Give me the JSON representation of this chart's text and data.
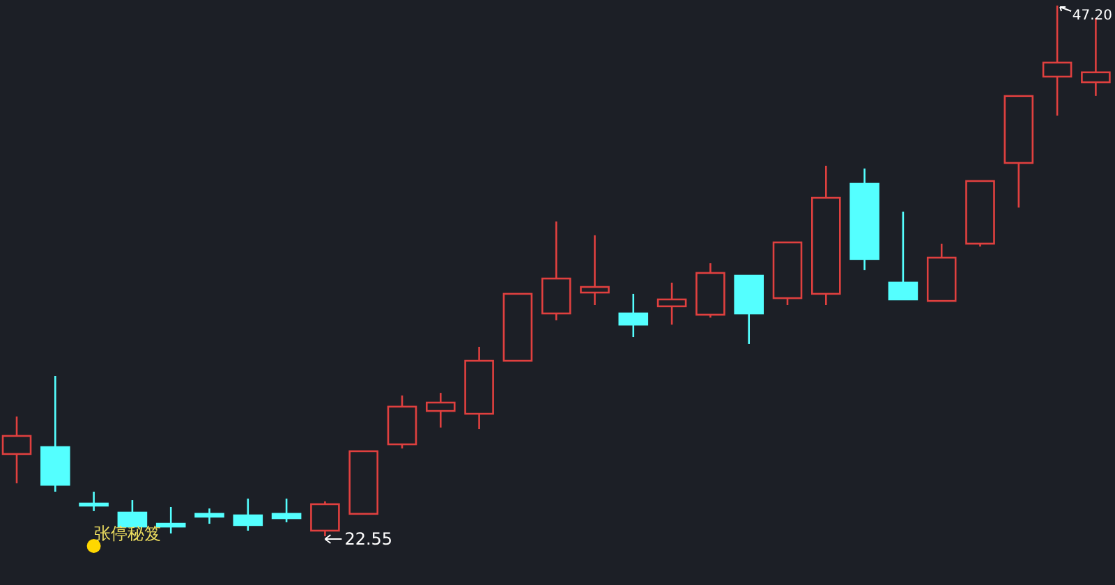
{
  "chart_data": {
    "type": "candlestick",
    "categories": [
      null,
      null,
      null,
      null,
      null,
      null,
      null,
      null,
      null,
      null,
      null,
      null,
      null,
      null,
      null,
      null,
      null,
      null,
      null,
      null,
      null,
      null,
      null,
      null,
      null,
      null,
      null,
      null,
      null
    ],
    "ohlc": [
      [
        26.37,
        28.11,
        25.01,
        27.21
      ],
      [
        26.69,
        29.99,
        24.62,
        24.94
      ],
      [
        24.07,
        24.62,
        23.72,
        24.01
      ],
      [
        23.65,
        24.23,
        23.0,
        23.0
      ],
      [
        23.13,
        23.91,
        22.68,
        23.0
      ],
      [
        23.59,
        23.84,
        23.13,
        23.46
      ],
      [
        23.52,
        24.3,
        22.81,
        23.07
      ],
      [
        23.59,
        24.3,
        23.2,
        23.39
      ],
      [
        22.81,
        24.17,
        22.55,
        24.04
      ],
      [
        23.59,
        26.5,
        23.59,
        26.5
      ],
      [
        26.82,
        29.09,
        26.63,
        28.57
      ],
      [
        28.37,
        29.21,
        27.6,
        28.76
      ],
      [
        28.24,
        31.35,
        27.53,
        30.7
      ],
      [
        30.7,
        33.81,
        30.7,
        33.81
      ],
      [
        32.9,
        37.17,
        32.58,
        34.52
      ],
      [
        33.87,
        36.53,
        33.29,
        34.13
      ],
      [
        32.9,
        33.81,
        31.8,
        32.38
      ],
      [
        33.23,
        34.33,
        32.38,
        33.55
      ],
      [
        32.84,
        35.23,
        32.71,
        34.78
      ],
      [
        34.65,
        34.65,
        31.48,
        32.9
      ],
      [
        33.61,
        36.2,
        33.29,
        36.2
      ],
      [
        33.81,
        39.76,
        33.29,
        38.27
      ],
      [
        38.92,
        39.63,
        34.91,
        35.43
      ],
      [
        34.33,
        37.63,
        33.55,
        33.55
      ],
      [
        33.48,
        36.14,
        33.48,
        35.49
      ],
      [
        36.14,
        39.05,
        36.01,
        39.05
      ],
      [
        39.89,
        43.0,
        37.82,
        43.0
      ],
      [
        43.9,
        47.2,
        42.09,
        44.55
      ],
      [
        43.64,
        46.62,
        43.0,
        44.1
      ]
    ],
    "colors": [
      "#e0403f",
      "#54ffff",
      "#54ffff",
      "#54ffff",
      "#54ffff",
      "#54ffff",
      "#54ffff",
      "#54ffff",
      "#e0403f",
      "#e0403f",
      "#e0403f",
      "#e0403f",
      "#e0403f",
      "#e0403f",
      "#e0403f",
      "#e0403f",
      "#54ffff",
      "#e0403f",
      "#e0403f",
      "#54ffff",
      "#e0403f",
      "#e0403f",
      "#54ffff",
      "#54ffff",
      "#e0403f",
      "#e0403f",
      "#e0403f",
      "#e0403f",
      "#e0403f"
    ],
    "annotations": [
      "47.20",
      "22.55",
      "张停秘笈"
    ]
  }
}
